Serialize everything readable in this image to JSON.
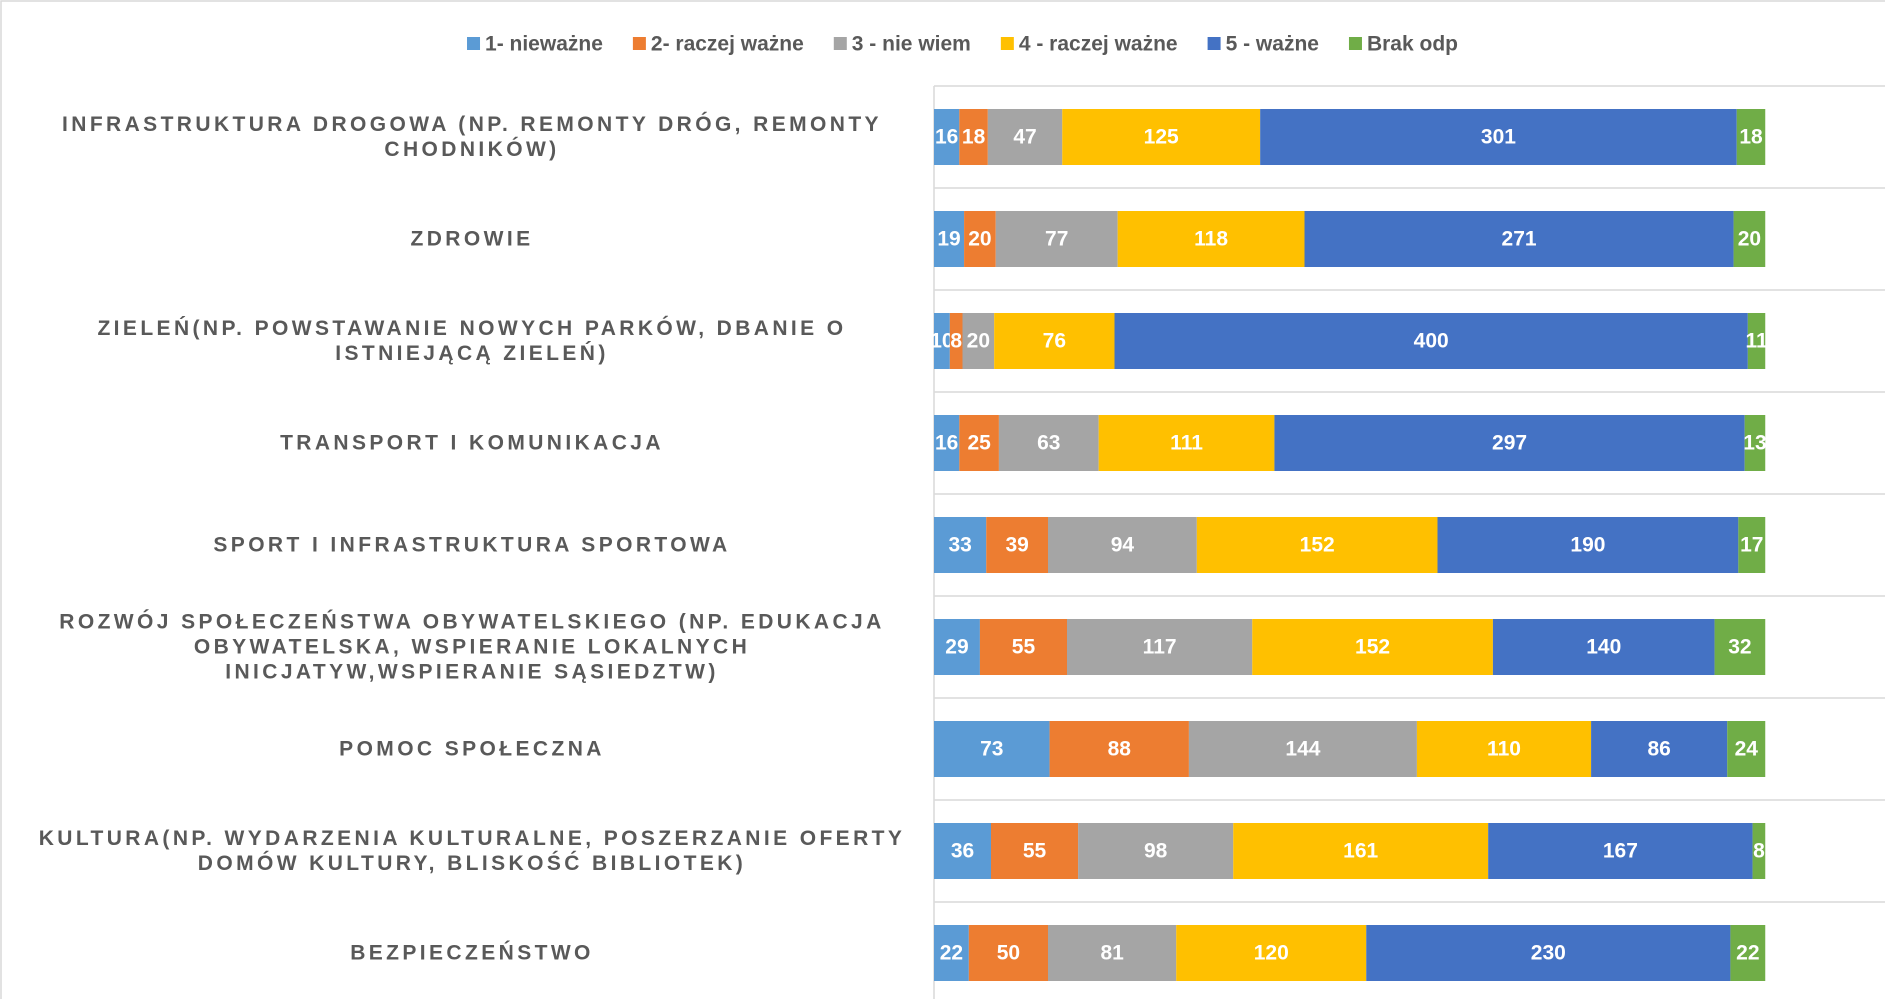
{
  "chart_data": {
    "type": "stacked_barh",
    "categories": [
      "INFRASTRUKTURA DROGOWA (NP. REMONTY DRÓG, REMONTY CHODNIKÓW)",
      "ZDROWIE",
      "ZIELEŃ(NP. POWSTAWANIE NOWYCH PARKÓW, DBANIE O ISTNIEJĄCĄ ZIELEŃ)",
      "TRANSPORT I KOMUNIKACJA",
      "SPORT I INFRASTRUKTURA SPORTOWA",
      "ROZWÓJ SPOŁECZEŃSTWA OBYWATELSKIEGO (NP. EDUKACJA OBYWATELSKA, WSPIERANIE LOKALNYCH INICJATYW,WSPIERANIE SĄSIEDZTW)",
      "POMOC SPOŁECZNA",
      "KULTURA(NP. WYDARZENIA KULTURALNE, POSZERZANIE OFERTY DOMÓW KULTURY, BLISKOŚĆ BIBLIOTEK)",
      "BEZPIECZEŃSTWO"
    ],
    "series": [
      {
        "name": "1- nieważne",
        "color": "#5b9bd5",
        "values": [
          16,
          19,
          10,
          16,
          33,
          29,
          73,
          36,
          22
        ]
      },
      {
        "name": "2- raczej ważne",
        "color": "#ed7d31",
        "values": [
          18,
          20,
          8,
          25,
          39,
          55,
          88,
          55,
          50
        ]
      },
      {
        "name": "3 - nie wiem",
        "color": "#a5a5a5",
        "values": [
          47,
          77,
          20,
          63,
          94,
          117,
          144,
          98,
          81
        ]
      },
      {
        "name": "4 - raczej ważne",
        "color": "#ffc000",
        "values": [
          125,
          118,
          76,
          111,
          152,
          152,
          110,
          161,
          120
        ]
      },
      {
        "name": "5 - ważne",
        "color": "#4472c4",
        "values": [
          301,
          271,
          400,
          297,
          190,
          140,
          86,
          167,
          230
        ]
      },
      {
        "name": "Brak odp",
        "color": "#70ad47",
        "values": [
          18,
          20,
          11,
          13,
          17,
          32,
          24,
          8,
          22
        ]
      }
    ],
    "xlim": [
      0,
      600
    ],
    "legend": "top"
  }
}
